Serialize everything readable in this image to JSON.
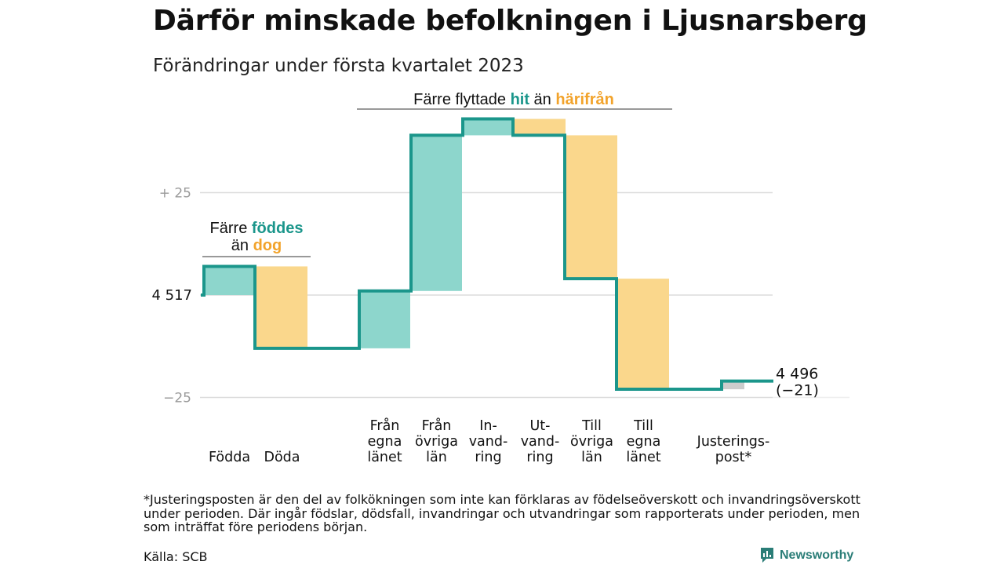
{
  "title": "Därför minskade befolkningen i Ljusnarsberg",
  "subtitle": "Förändringar under första kvartalet 2023",
  "footnote": "*Justeringsposten är den del av folkökningen som inte kan förklaras av födelseöverskott och invandringsöverskott under perioden. Där ingår födslar, dödsfall, invandringar och utvandringar som rapporterats under perioden, men som inträffat före periodens början.",
  "source": "Källa: SCB",
  "brand": "Newsworthy",
  "colors": {
    "increase": "#8dd6cc",
    "decrease": "#fad78c",
    "adjustment": "#cccccc",
    "line": "#1b968b",
    "accent_teal": "#1b968b",
    "accent_orange": "#f2a32b",
    "grid": "#dcdcdc",
    "text": "#111111"
  },
  "chart_data": {
    "type": "waterfall",
    "baseline_value": 4517,
    "baseline_label": "4 517",
    "end_label": "4 496",
    "end_change_label": "(−21)",
    "y_ticks": [
      {
        "value": 25,
        "label": "+ 25"
      },
      {
        "value": 0,
        "label": ""
      },
      {
        "value": -25,
        "label": "−25"
      }
    ],
    "steps": [
      {
        "label": [
          "Födda"
        ],
        "value": 7,
        "kind": "increase"
      },
      {
        "label": [
          "Döda"
        ],
        "value": -20,
        "kind": "decrease"
      },
      {
        "label": [
          "Från",
          "egna",
          "länet"
        ],
        "value": 14,
        "kind": "increase"
      },
      {
        "label": [
          "Från",
          "övriga",
          "län"
        ],
        "value": 38,
        "kind": "increase"
      },
      {
        "label": [
          "In-",
          "vand-",
          "ring"
        ],
        "value": 4,
        "kind": "increase"
      },
      {
        "label": [
          "Ut-",
          "vand-",
          "ring"
        ],
        "value": -4,
        "kind": "decrease"
      },
      {
        "label": [
          "Till",
          "övriga",
          "län"
        ],
        "value": -35,
        "kind": "decrease"
      },
      {
        "label": [
          "Till",
          "egna",
          "länet"
        ],
        "value": -27,
        "kind": "decrease"
      },
      {
        "label": [
          "Justerings-",
          "post*"
        ],
        "value": 2,
        "kind": "adjustment"
      }
    ],
    "annotations": [
      {
        "id": "births",
        "lines": [
          [
            {
              "text": "Färre ",
              "tone": "plain"
            },
            {
              "text": "föddes",
              "tone": "teal"
            }
          ],
          [
            {
              "text": "än ",
              "tone": "plain"
            },
            {
              "text": "dog",
              "tone": "orange"
            }
          ]
        ]
      },
      {
        "id": "moves",
        "lines": [
          [
            {
              "text": "Färre flyttade ",
              "tone": "plain"
            },
            {
              "text": "hit",
              "tone": "teal"
            },
            {
              "text": " än ",
              "tone": "plain"
            },
            {
              "text": "härifrån",
              "tone": "orange"
            }
          ]
        ]
      }
    ]
  }
}
